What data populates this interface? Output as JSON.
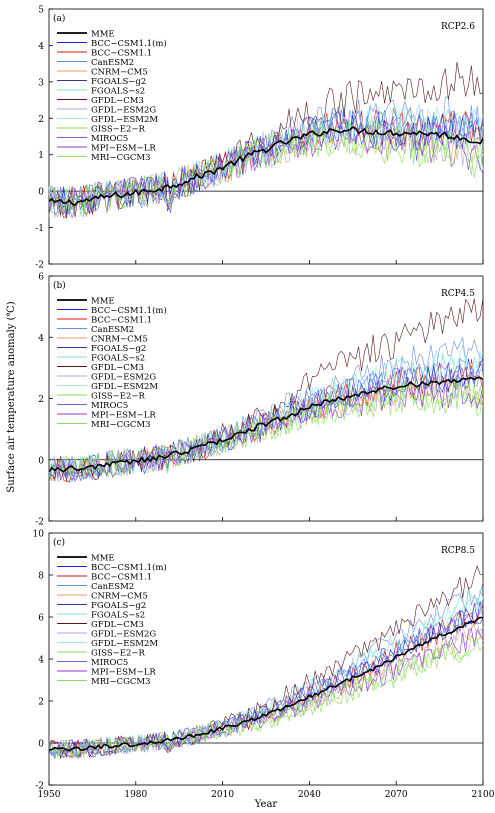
{
  "figure": {
    "ylabel": "Surface air temperature anomaly (℃)",
    "xlabel": "Year"
  },
  "legend_entries": [
    {
      "name": "MME",
      "color": "#000000"
    },
    {
      "name": "BCC−CSM1.1(m)",
      "color": "#1a1aff"
    },
    {
      "name": "BCC−CSM1.1",
      "color": "#e01010"
    },
    {
      "name": "CanESM2",
      "color": "#6a8de0"
    },
    {
      "name": "CNRM−CM5",
      "color": "#e0a060"
    },
    {
      "name": "FGOALS−g2",
      "color": "#2a3aa0"
    },
    {
      "name": "FGOALS−s2",
      "color": "#7fe0e0"
    },
    {
      "name": "GFDL−CM3",
      "color": "#5a1a1a"
    },
    {
      "name": "GFDL−ESM2G",
      "color": "#b9a0e0"
    },
    {
      "name": "GFDL−ESM2M",
      "color": "#a0e8e8"
    },
    {
      "name": "GISS−E2−R",
      "color": "#80e050"
    },
    {
      "name": "MIROC5",
      "color": "#6a6ae0"
    },
    {
      "name": "MPI−ESM−LR",
      "color": "#8a3ad0"
    },
    {
      "name": "MRI−CGCM3",
      "color": "#90e060"
    }
  ],
  "chart_data": [
    {
      "type": "line",
      "panel_label": "(a)",
      "scenario": "RCP2.6",
      "xlim": [
        1950,
        2100
      ],
      "ylim": [
        -2,
        5
      ],
      "xticks": [
        1950,
        1980,
        2010,
        2040,
        2070,
        2100
      ],
      "yticks": [
        -2,
        -1,
        0,
        1,
        2,
        3,
        4,
        5
      ],
      "mme_anchors": {
        "x": [
          1950,
          1960,
          1970,
          1980,
          1990,
          2000,
          2010,
          2020,
          2030,
          2040,
          2050,
          2060,
          2070,
          2080,
          2090,
          2100
        ],
        "y": [
          -0.3,
          -0.3,
          -0.15,
          -0.05,
          0.1,
          0.35,
          0.65,
          1.0,
          1.3,
          1.55,
          1.7,
          1.65,
          1.6,
          1.6,
          1.5,
          1.35
        ]
      },
      "gfdl_cm3_2100": 3.0,
      "model_offsets_2100": [
        0,
        0.1,
        0.2,
        0.6,
        -0.3,
        0.1,
        0.4,
        1.65,
        -0.2,
        0.3,
        -0.5,
        0.2,
        -0.3,
        -0.4
      ]
    },
    {
      "type": "line",
      "panel_label": "(b)",
      "scenario": "RCP4.5",
      "xlim": [
        1950,
        2100
      ],
      "ylim": [
        -2,
        6
      ],
      "xticks": [
        1950,
        1980,
        2010,
        2040,
        2070,
        2100
      ],
      "yticks": [
        -2,
        0,
        2,
        4,
        6
      ],
      "mme_anchors": {
        "x": [
          1950,
          1960,
          1970,
          1980,
          1990,
          2000,
          2010,
          2020,
          2030,
          2040,
          2050,
          2060,
          2070,
          2080,
          2090,
          2100
        ],
        "y": [
          -0.3,
          -0.3,
          -0.15,
          -0.05,
          0.1,
          0.35,
          0.65,
          1.0,
          1.35,
          1.7,
          2.0,
          2.2,
          2.4,
          2.5,
          2.6,
          2.6
        ]
      },
      "gfdl_cm3_2100": 4.8,
      "model_offsets_2100": [
        0,
        0.2,
        0.1,
        1.0,
        -0.3,
        0.2,
        0.6,
        2.2,
        -0.3,
        0.4,
        -0.5,
        0.3,
        -0.4,
        -0.6
      ]
    },
    {
      "type": "line",
      "panel_label": "(c)",
      "scenario": "RCP8.5",
      "xlim": [
        1950,
        2100
      ],
      "ylim": [
        -2,
        10
      ],
      "xticks": [
        1950,
        1980,
        2010,
        2040,
        2070,
        2100
      ],
      "yticks": [
        -2,
        0,
        2,
        4,
        6,
        8,
        10
      ],
      "mme_anchors": {
        "x": [
          1950,
          1960,
          1970,
          1980,
          1990,
          2000,
          2010,
          2020,
          2030,
          2040,
          2050,
          2060,
          2070,
          2080,
          2090,
          2100
        ],
        "y": [
          -0.3,
          -0.3,
          -0.15,
          -0.05,
          0.1,
          0.35,
          0.7,
          1.1,
          1.6,
          2.2,
          2.8,
          3.4,
          4.1,
          4.8,
          5.4,
          6.0
        ]
      },
      "gfdl_cm3_2100": 8.0,
      "model_offsets_2100": [
        0,
        0.3,
        0.2,
        1.2,
        -0.6,
        0.3,
        1.0,
        2.0,
        -0.7,
        0.6,
        -1.1,
        0.4,
        -0.8,
        -1.3
      ]
    }
  ]
}
